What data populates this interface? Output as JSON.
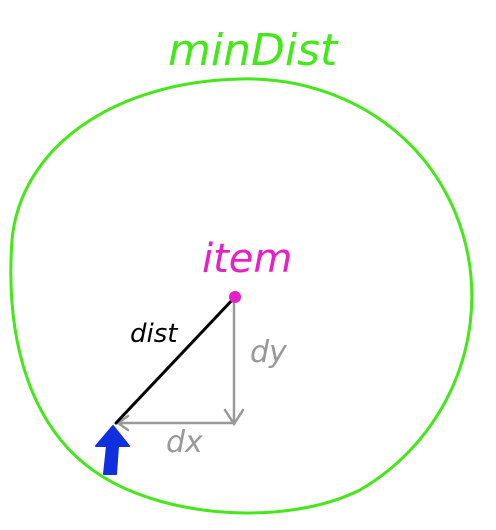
{
  "labels": {
    "min_dist": "minDist",
    "item": "item",
    "dist": "dist",
    "dy": "dy",
    "dx": "dx"
  },
  "colors": {
    "background": "#ffffff",
    "circle": "#44e818",
    "item": "#e81ec8",
    "dist_line": "#000000",
    "axes": "#999999",
    "arrow": "#1030e0"
  }
}
